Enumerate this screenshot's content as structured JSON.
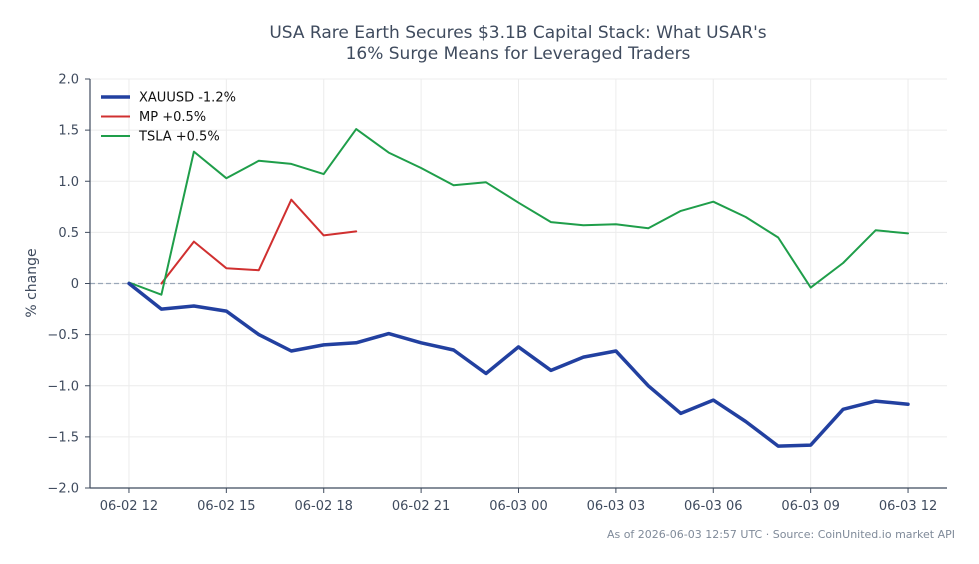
{
  "chart_data": {
    "type": "line",
    "title_lines": [
      "USA Rare Earth Secures $3.1B Capital Stack: What USAR's",
      "16% Surge Means for Leveraged Traders"
    ],
    "xlabel": "",
    "ylabel": "% change",
    "ylim": [
      -2.0,
      2.0
    ],
    "y_ticks": [
      "2.0",
      "1.5",
      "1.0",
      "0.5",
      "0",
      "−0.5",
      "−1.0",
      "−1.5",
      "−2.0"
    ],
    "y_tick_values": [
      2.0,
      1.5,
      1.0,
      0.5,
      0,
      -0.5,
      -1.0,
      -1.5,
      -2.0
    ],
    "x_ticks": [
      "06-02 12",
      "06-02 15",
      "06-02 18",
      "06-02 21",
      "06-03 00",
      "06-03 03",
      "06-03 06",
      "06-03 09",
      "06-03 12"
    ],
    "x_tick_hours": [
      0,
      3,
      6,
      9,
      12,
      15,
      18,
      21,
      24
    ],
    "xlim_hours": [
      -1.2,
      25.2
    ],
    "grid": true,
    "zero_line": true,
    "legend_position": "top-left",
    "series": [
      {
        "name": "XAUUSD -1.2%",
        "color": "#2240a0",
        "width": "thick",
        "x_hours": [
          0,
          1,
          2,
          3,
          4,
          5,
          6,
          7,
          8,
          9,
          10,
          11,
          12,
          13,
          14,
          15,
          16,
          17,
          18,
          19,
          20,
          21,
          22,
          23,
          24
        ],
        "values": [
          0.0,
          -0.25,
          -0.22,
          -0.27,
          -0.5,
          -0.66,
          -0.6,
          -0.58,
          -0.49,
          -0.58,
          -0.65,
          -0.88,
          -0.62,
          -0.85,
          -0.72,
          -0.66,
          -1.0,
          -1.27,
          -1.14,
          -1.35,
          -1.59,
          -1.58,
          -1.23,
          -1.15,
          -1.18
        ]
      },
      {
        "name": "MP +0.5%",
        "color": "#d03030",
        "width": "normal",
        "x_hours": [
          1,
          2,
          3,
          4,
          5,
          6,
          7
        ],
        "values": [
          0.0,
          0.41,
          0.15,
          0.13,
          0.82,
          0.47,
          0.51
        ]
      },
      {
        "name": "TSLA +0.5%",
        "color": "#1f9e4a",
        "width": "normal",
        "x_hours": [
          0,
          1,
          2,
          3,
          4,
          5,
          6,
          7,
          8,
          9,
          10,
          11,
          12,
          13,
          14,
          15,
          16,
          17,
          18,
          19,
          20,
          21,
          22,
          23,
          24
        ],
        "values": [
          0.01,
          -0.11,
          1.29,
          1.03,
          1.2,
          1.17,
          1.07,
          1.51,
          1.28,
          1.13,
          0.96,
          0.99,
          0.79,
          0.6,
          0.57,
          0.58,
          0.54,
          0.71,
          0.8,
          0.65,
          0.45,
          -0.04,
          0.2,
          0.52,
          0.49
        ]
      }
    ]
  },
  "footer": "As of 2026-06-03 12:57 UTC · Source: CoinUnited.io market API",
  "colors": {
    "axis": "#3f4b5e",
    "grid": "#ececec",
    "zero": "#9aa7b8",
    "footer": "#7f8a99"
  }
}
